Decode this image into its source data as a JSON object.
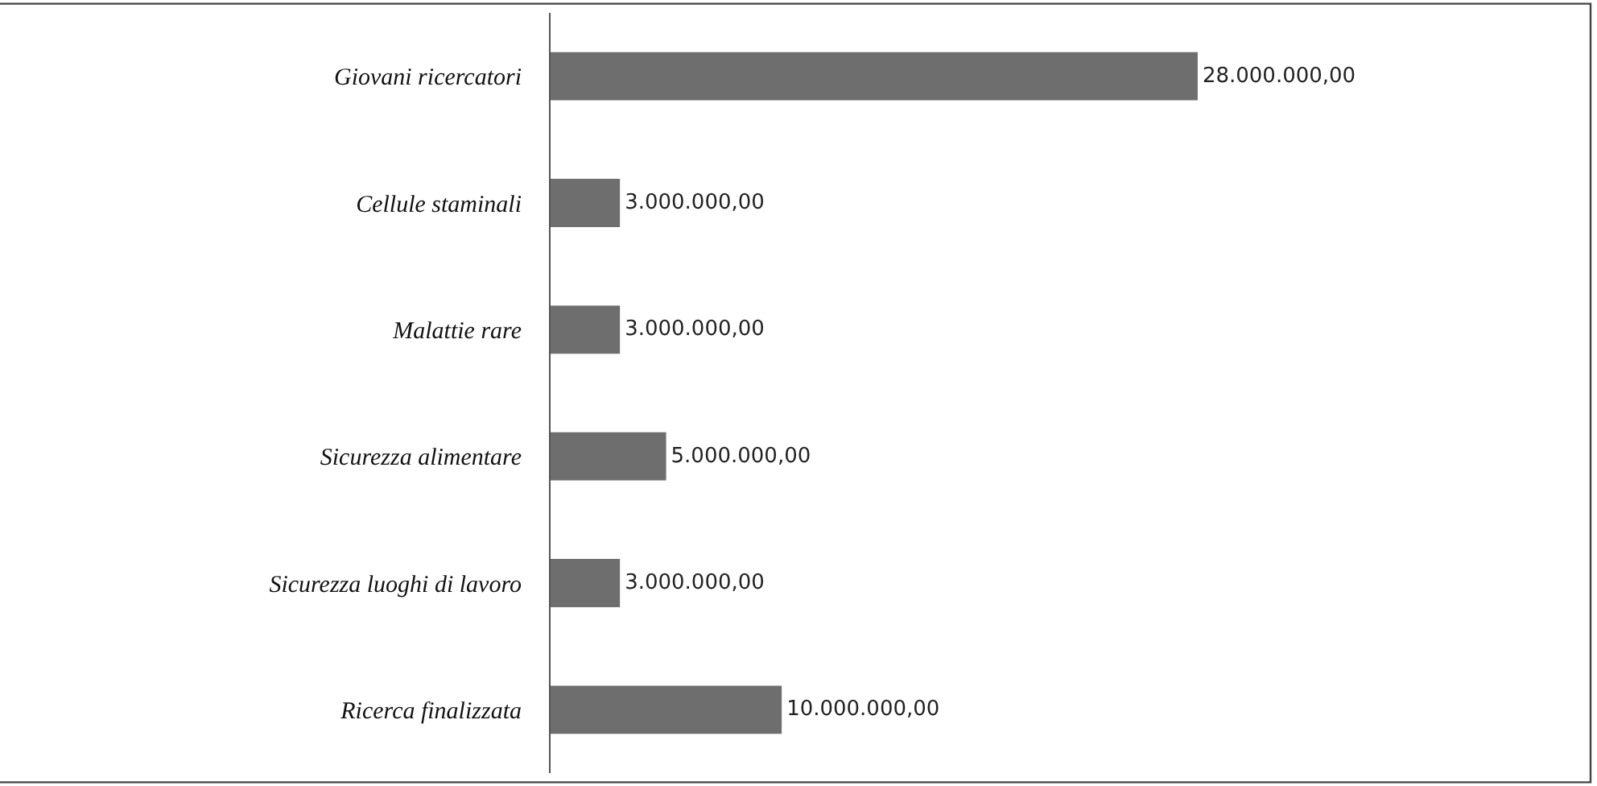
{
  "chart_data": {
    "type": "bar",
    "orientation": "horizontal",
    "categories": [
      "Giovani ricercatori",
      "Cellule staminali",
      "Malattie rare",
      "Sicurezza alimentare",
      "Sicurezza luoghi di lavoro",
      "Ricerca finalizzata"
    ],
    "values": [
      28000000,
      3000000,
      3000000,
      5000000,
      3000000,
      10000000
    ],
    "value_labels": [
      "28.000.000,00",
      "3.000.000,00",
      "3.000.000,00",
      "5.000.000,00",
      "3.000.000,00",
      "10.000.000,00"
    ],
    "color": "#6e6e6e",
    "xlim": [
      0,
      45000000
    ],
    "legend": false,
    "tick_labels": "y"
  }
}
